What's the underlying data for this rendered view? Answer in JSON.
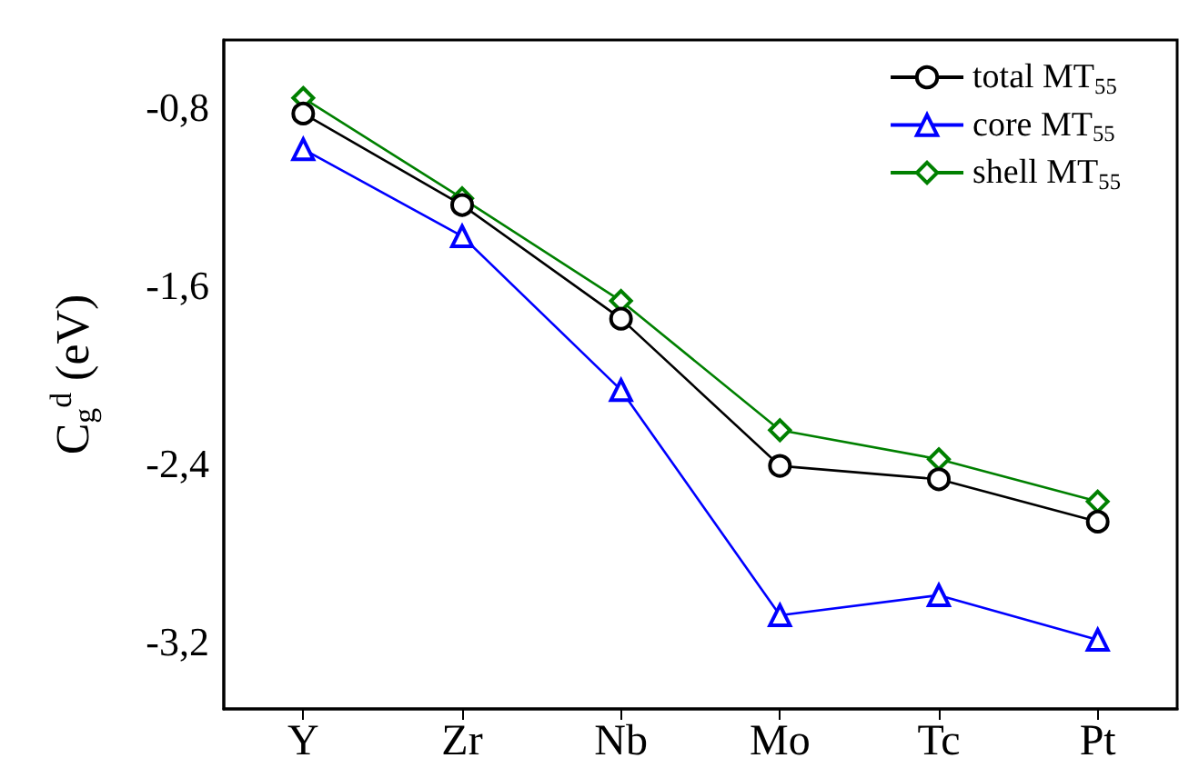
{
  "chart_data": {
    "type": "line",
    "ylabel": "C$_{g}$$^{d}$ (eV)",
    "categories": [
      "Y",
      "Zr",
      "Nb",
      "Mo",
      "Tc",
      "Pt"
    ],
    "series": [
      {
        "name": "total MT$_{55}$",
        "color": "#000000",
        "marker": "circle",
        "values": [
          -0.83,
          -1.24,
          -1.75,
          -2.41,
          -2.47,
          -2.66
        ]
      },
      {
        "name": "core MT$_{55}$",
        "color": "#0000ff",
        "marker": "triangle",
        "values": [
          -0.99,
          -1.38,
          -2.07,
          -3.08,
          -2.99,
          -3.19
        ]
      },
      {
        "name": "shell MT$_{55}$",
        "color": "#008000",
        "marker": "diamond",
        "values": [
          -0.76,
          -1.21,
          -1.67,
          -2.25,
          -2.38,
          -2.57
        ]
      }
    ],
    "ylim": [
      -3.5,
      -0.5
    ],
    "yticks": [
      {
        "value": -3.2,
        "label": "-3,2"
      },
      {
        "value": -2.4,
        "label": "-2,4"
      },
      {
        "value": -1.6,
        "label": "-1,6"
      },
      {
        "value": -0.8,
        "label": "-0,8"
      }
    ],
    "grid": false,
    "legend": "top right"
  }
}
